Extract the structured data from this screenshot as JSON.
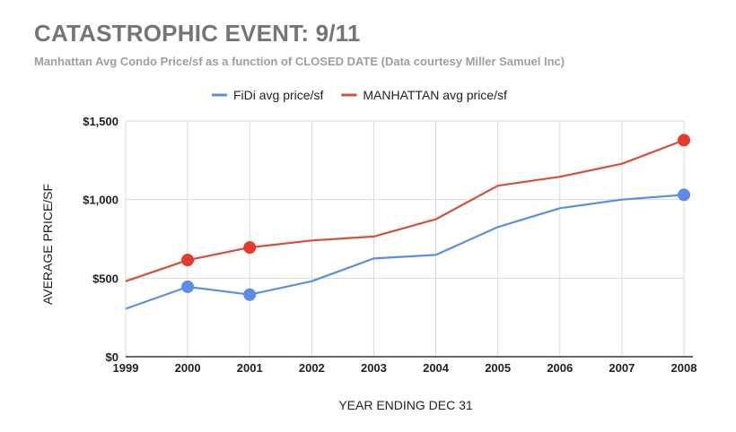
{
  "chart_data": {
    "type": "line",
    "title": "CATASTROPHIC EVENT:  9/11",
    "subtitle": "Manhattan Avg Condo Price/sf as a function of CLOSED DATE (Data courtesy Miller Samuel Inc)",
    "xlabel": "YEAR ENDING DEC 31",
    "ylabel": "AVERAGE PRICE/SF",
    "x": [
      1999,
      2000,
      2001,
      2002,
      2003,
      2004,
      2005,
      2006,
      2007,
      2008
    ],
    "x_tick_labels": [
      "1999",
      "2000",
      "2001",
      "2002",
      "2003",
      "2004",
      "2005",
      "2006",
      "2007",
      "2008"
    ],
    "y_ticks": [
      0,
      500,
      1000,
      1500
    ],
    "y_tick_labels": [
      "$0",
      "$500",
      "$1,000",
      "$1,500"
    ],
    "ylim": [
      0,
      1500
    ],
    "grid": true,
    "legend_position": "top",
    "series": [
      {
        "name": "FiDi avg price/sf",
        "color": "#5b8de8",
        "values": [
          305,
          445,
          395,
          480,
          625,
          648,
          825,
          945,
          1000,
          1030
        ],
        "highlighted_x": [
          2000,
          2001,
          2008
        ]
      },
      {
        "name": "MANHATTAN avg price/sf",
        "color": "#d3503c",
        "values": [
          480,
          615,
          695,
          740,
          765,
          875,
          1088,
          1145,
          1228,
          1378
        ],
        "highlighted_x": [
          2000,
          2001,
          2008
        ]
      }
    ]
  },
  "colors": {
    "fidi_marker": "#5b8de8",
    "manhattan_marker": "#e8392a"
  }
}
